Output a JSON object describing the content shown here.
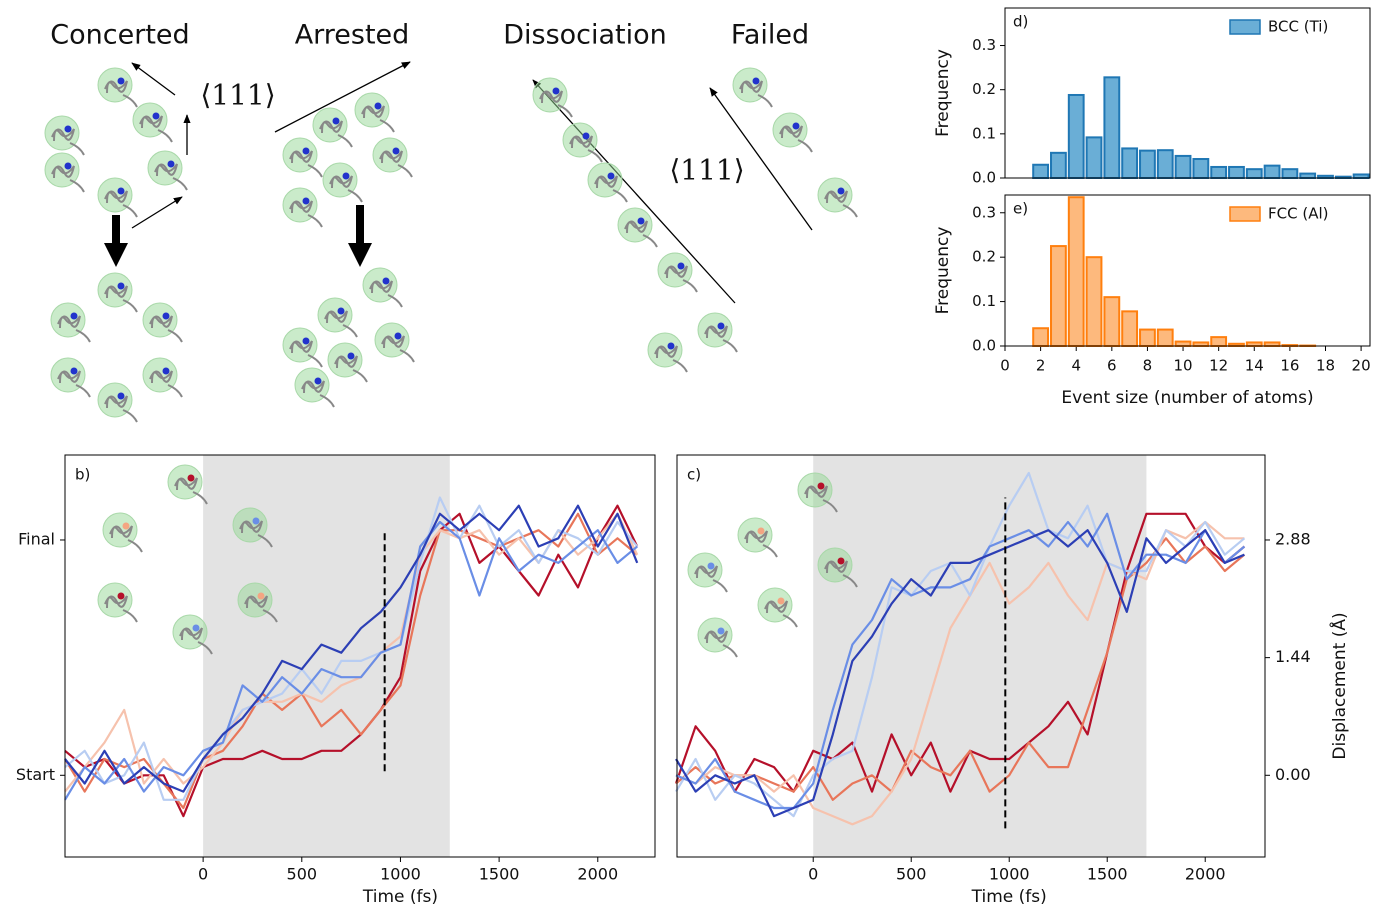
{
  "illustration": {
    "labels": [
      "Concerted",
      "Arrested",
      "Dissociation",
      "Failed"
    ],
    "directions": [
      "⟨111⟩",
      "⟨111⟩"
    ]
  },
  "chart_data": [
    {
      "type": "histogram",
      "label": "d)",
      "ylabel": "Frequency",
      "bins": [
        1.5,
        2.5,
        3.5,
        4.5,
        5.5,
        6.5,
        7.5,
        8.5,
        9.5,
        10.5,
        11.5,
        12.5,
        13.5,
        14.5,
        15.5,
        16.5,
        17.5,
        18.5,
        19.5,
        20.5
      ],
      "series": [
        {
          "name": "BCC (Ti)",
          "color": "#1f77b4",
          "fill": "#6aaed6",
          "values": [
            0.03,
            0.057,
            0.188,
            0.092,
            0.228,
            0.067,
            0.062,
            0.063,
            0.05,
            0.043,
            0.025,
            0.025,
            0.02,
            0.028,
            0.02,
            0.01,
            0.005,
            0.003,
            0.008
          ]
        }
      ],
      "xlim": [
        0,
        20.5
      ],
      "ylim": [
        0,
        0.385
      ],
      "yticks": [
        {
          "value": 0,
          "label": "0.0"
        },
        {
          "value": 0.1,
          "label": "0.1"
        },
        {
          "value": 0.2,
          "label": "0.2"
        },
        {
          "value": 0.3,
          "label": "0.3"
        }
      ],
      "legend": "upper right"
    },
    {
      "type": "histogram",
      "label": "e)",
      "ylabel": "Frequency",
      "xlabel": "Event size (number of atoms)",
      "bins": [
        1.5,
        2.5,
        3.5,
        4.5,
        5.5,
        6.5,
        7.5,
        8.5,
        9.5,
        10.5,
        11.5,
        12.5,
        13.5,
        14.5,
        15.5,
        16.5,
        17.5,
        18.5,
        19.5,
        20.5
      ],
      "series": [
        {
          "name": "FCC (Al)",
          "color": "#ff7f0e",
          "fill": "#fdb97d",
          "values": [
            0.04,
            0.225,
            0.335,
            0.2,
            0.11,
            0.078,
            0.037,
            0.037,
            0.01,
            0.008,
            0.02,
            0.005,
            0.008,
            0.008,
            0.002,
            0.001,
            0,
            0,
            0
          ]
        }
      ],
      "xlim": [
        0,
        20.5
      ],
      "ylim": [
        0,
        0.34
      ],
      "xticks": [
        0,
        2,
        4,
        6,
        8,
        10,
        12,
        14,
        16,
        18,
        20
      ],
      "yticks": [
        {
          "value": 0,
          "label": "0.0"
        },
        {
          "value": 0.1,
          "label": "0.1"
        },
        {
          "value": 0.2,
          "label": "0.2"
        },
        {
          "value": 0.3,
          "label": "0.3"
        }
      ],
      "legend": "upper right"
    },
    {
      "type": "line",
      "label": "b)",
      "xlabel": "Time (fs)",
      "x": [
        -700,
        -600,
        -500,
        -400,
        -300,
        -200,
        -100,
        0,
        100,
        200,
        300,
        400,
        500,
        600,
        700,
        800,
        900,
        1000,
        1100,
        1200,
        1300,
        1400,
        1500,
        1600,
        1700,
        1800,
        1900,
        2000,
        2100,
        2200
      ],
      "series": [
        {
          "color": "#b5102a",
          "values": [
            0.3,
            0.1,
            0.2,
            -0.1,
            0.0,
            0.0,
            -0.5,
            0.1,
            0.2,
            0.2,
            0.3,
            0.2,
            0.2,
            0.3,
            0.3,
            0.5,
            0.8,
            1.2,
            2.5,
            3.0,
            3.2,
            2.6,
            2.8,
            2.5,
            2.2,
            2.7,
            2.3,
            2.9,
            3.3,
            2.8
          ]
        },
        {
          "color": "#e8765a",
          "values": [
            0.2,
            -0.2,
            0.2,
            0.1,
            0.2,
            -0.1,
            -0.4,
            0.2,
            0.3,
            0.6,
            1.0,
            0.8,
            1.0,
            0.6,
            0.8,
            0.5,
            0.8,
            1.1,
            2.2,
            3.0,
            3.0,
            2.9,
            2.8,
            2.9,
            3.0,
            2.8,
            3.2,
            2.7,
            2.9,
            2.7
          ]
        },
        {
          "color": "#f6c2ad",
          "values": [
            -0.2,
            0.1,
            0.4,
            0.8,
            -0.1,
            0.2,
            -0.1,
            0.1,
            0.4,
            0.8,
            0.9,
            0.9,
            1.0,
            0.9,
            1.1,
            1.2,
            1.5,
            1.7,
            2.7,
            3.0,
            2.9,
            3.0,
            2.7,
            2.9,
            2.6,
            3.0,
            2.7,
            2.9,
            3.2,
            2.7
          ]
        },
        {
          "color": "#b8cdf2",
          "values": [
            0.1,
            0.3,
            -0.1,
            0.0,
            0.4,
            -0.3,
            -0.3,
            0.2,
            0.5,
            0.8,
            0.9,
            1.0,
            1.3,
            1.0,
            1.4,
            1.4,
            1.5,
            1.6,
            2.6,
            3.4,
            2.9,
            3.3,
            2.8,
            3.0,
            2.6,
            3.0,
            2.9,
            2.7,
            3.1,
            2.8
          ]
        },
        {
          "color": "#6a8ee6",
          "values": [
            -0.3,
            0.1,
            -0.1,
            0.2,
            -0.2,
            0.1,
            0.0,
            0.3,
            0.4,
            1.1,
            0.9,
            1.2,
            1.0,
            1.3,
            1.2,
            1.2,
            1.5,
            1.6,
            2.8,
            3.1,
            2.9,
            2.2,
            2.9,
            2.5,
            2.7,
            2.6,
            2.8,
            3.0,
            2.6,
            2.8
          ]
        },
        {
          "color": "#2c3fb5",
          "values": [
            0.2,
            -0.1,
            0.3,
            -0.1,
            0.1,
            -0.1,
            -0.2,
            0.2,
            0.5,
            0.7,
            1.0,
            1.4,
            1.3,
            1.6,
            1.5,
            1.8,
            2.0,
            2.3,
            2.7,
            3.2,
            3.0,
            3.2,
            3.0,
            3.3,
            2.8,
            2.9,
            3.3,
            2.8,
            3.2,
            2.6
          ]
        }
      ],
      "xlim": [
        -700,
        2290
      ],
      "ylim": [
        -1.0,
        3.92
      ],
      "xticks": [
        0,
        500,
        1000,
        1500,
        2000
      ],
      "yticks": [
        {
          "value": 0,
          "label": "Start"
        },
        {
          "value": 2.88,
          "label": "Final"
        }
      ],
      "shade": [
        0,
        1250
      ],
      "marker_x": 920,
      "marker_y": [
        0.05,
        3.0
      ]
    },
    {
      "type": "line",
      "label": "c)",
      "xlabel": "Time (fs)",
      "y2label": "Displacement (Å)",
      "x": [
        -700,
        -600,
        -500,
        -400,
        -300,
        -200,
        -100,
        0,
        100,
        200,
        300,
        400,
        500,
        600,
        700,
        800,
        900,
        1000,
        1100,
        1200,
        1300,
        1400,
        1500,
        1600,
        1700,
        1800,
        1900,
        2000,
        2100,
        2200
      ],
      "series": [
        {
          "color": "#b5102a",
          "axis": "y2",
          "values": [
            -0.1,
            0.6,
            0.3,
            -0.2,
            0.2,
            0.1,
            -0.2,
            0.3,
            0.2,
            0.4,
            -0.2,
            0.5,
            0.0,
            0.4,
            -0.2,
            0.3,
            0.2,
            0.2,
            0.4,
            0.6,
            0.9,
            0.5,
            1.5,
            2.5,
            3.2,
            3.2,
            3.2,
            2.8,
            2.6,
            2.8
          ]
        },
        {
          "color": "#e8765a",
          "axis": "y2",
          "values": [
            -0.1,
            0.1,
            -0.1,
            0.0,
            0.0,
            -0.1,
            -0.2,
            0.1,
            -0.3,
            -0.1,
            0.0,
            -0.2,
            0.3,
            0.1,
            0.0,
            0.3,
            -0.2,
            0.0,
            0.4,
            0.1,
            0.1,
            0.8,
            1.5,
            2.4,
            2.6,
            2.9,
            2.6,
            2.8,
            2.5,
            2.7
          ]
        },
        {
          "color": "#f6c2ad",
          "axis": "y2",
          "values": [
            0.0,
            -0.1,
            0.1,
            0.0,
            0.0,
            -0.2,
            0.0,
            -0.4,
            -0.5,
            -0.6,
            -0.5,
            -0.2,
            0.2,
            1.0,
            1.8,
            2.2,
            2.6,
            2.1,
            2.3,
            2.6,
            2.2,
            1.9,
            2.6,
            2.5,
            2.4,
            3.0,
            2.9,
            3.1,
            2.9,
            2.9
          ]
        },
        {
          "color": "#b8cdf2",
          "axis": "y2",
          "values": [
            -0.2,
            0.2,
            -0.3,
            0.0,
            -0.1,
            -0.3,
            -0.5,
            0.0,
            0.2,
            0.3,
            1.2,
            2.3,
            2.2,
            2.5,
            2.6,
            2.2,
            2.8,
            3.3,
            3.7,
            3.0,
            2.9,
            3.3,
            2.6,
            2.5,
            2.5,
            3.0,
            2.8,
            3.1,
            2.7,
            2.9
          ]
        },
        {
          "color": "#6a8ee6",
          "axis": "y2",
          "values": [
            0.0,
            -0.1,
            0.2,
            -0.2,
            -0.3,
            -0.4,
            -0.4,
            -0.1,
            0.8,
            1.6,
            1.9,
            2.4,
            2.2,
            2.3,
            2.3,
            2.4,
            2.8,
            2.9,
            3.0,
            2.8,
            3.1,
            2.8,
            3.2,
            2.4,
            2.7,
            2.7,
            2.6,
            3.0,
            2.6,
            2.8
          ]
        },
        {
          "color": "#2c3fb5",
          "axis": "y2",
          "values": [
            0.2,
            -0.2,
            0.0,
            -0.1,
            0.0,
            -0.5,
            -0.4,
            -0.3,
            0.5,
            1.4,
            1.7,
            2.1,
            2.4,
            2.2,
            2.6,
            2.6,
            2.7,
            2.8,
            2.9,
            3.0,
            2.8,
            3.0,
            2.6,
            2.0,
            2.9,
            2.6,
            2.8,
            3.0,
            2.6,
            2.7
          ]
        }
      ],
      "xlim": [
        -695,
        2305
      ],
      "y2lim": [
        -1.0,
        3.92
      ],
      "xticks": [
        0,
        500,
        1000,
        1500,
        2000
      ],
      "y2ticks": [
        {
          "value": 0,
          "label": "0.00"
        },
        {
          "value": 1.44,
          "label": "1.44"
        },
        {
          "value": 2.88,
          "label": "2.88"
        }
      ],
      "shade": [
        0,
        1700
      ],
      "marker_x": 980,
      "marker_y": [
        -0.65,
        3.4
      ]
    }
  ]
}
